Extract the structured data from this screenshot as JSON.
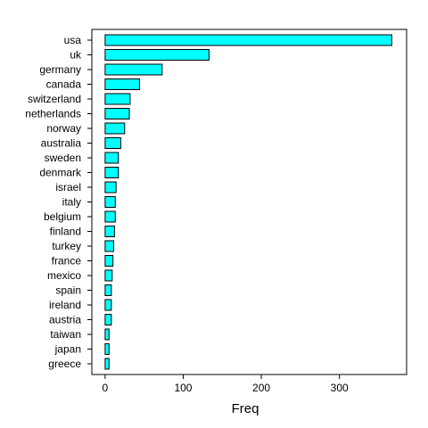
{
  "chart_data": {
    "type": "bar",
    "orientation": "horizontal",
    "categories": [
      "usa",
      "uk",
      "germany",
      "canada",
      "switzerland",
      "netherlands",
      "norway",
      "australia",
      "sweden",
      "denmark",
      "israel",
      "italy",
      "belgium",
      "finland",
      "turkey",
      "france",
      "mexico",
      "spain",
      "ireland",
      "austria",
      "taiwan",
      "japan",
      "greece"
    ],
    "values": [
      367,
      133,
      73,
      44,
      32,
      31,
      25,
      20,
      17,
      17,
      14,
      13,
      13,
      12,
      11,
      10,
      9,
      8,
      8,
      8,
      5,
      5,
      5
    ],
    "xlabel": "Freq",
    "ylabel": "",
    "xlim": [
      -17,
      386
    ],
    "xticks": [
      0,
      100,
      200,
      300
    ],
    "bar_color": "#00ffff",
    "grid": false,
    "legend": "none"
  }
}
